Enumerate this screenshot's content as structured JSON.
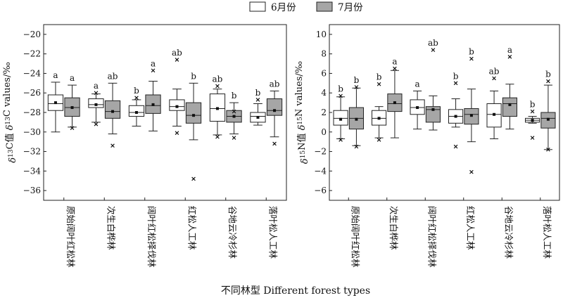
{
  "legend": {
    "entries": [
      {
        "label": "6月份",
        "color": "#ffffff"
      },
      {
        "label": "7月份",
        "color": "#a6a6a6"
      }
    ]
  },
  "x_axis_title": "不同林型 Different forest types",
  "colors": {
    "june": "#ffffff",
    "july": "#a6a6a6",
    "stroke": "#222222"
  },
  "chart_data": [
    {
      "type": "box",
      "panel": "left",
      "ylabel": "δ13C值 δ13C values/‰",
      "ylim": [
        -37,
        -19
      ],
      "yticks": [
        -36,
        -34,
        -32,
        -30,
        -28,
        -26,
        -24,
        -22,
        -20
      ],
      "categories": [
        "原始阔叶红松林",
        "次生白桦林",
        "阔叶红松择伐林",
        "红松人工林",
        "谷地云冷杉林",
        "落叶松人工林"
      ],
      "series": [
        {
          "name": "6月份",
          "boxes": [
            {
              "min": -30.0,
              "q1": -27.8,
              "median": -27.1,
              "q3": -26.2,
              "max": -24.9,
              "mean": -27.0,
              "outliers": [],
              "sig": "a"
            },
            {
              "min": -29.0,
              "q1": -27.5,
              "median": -27.2,
              "q3": -26.6,
              "max": -26.1,
              "mean": -27.2,
              "outliers": [
                -29.2,
                -26.0
              ],
              "sig": "a"
            },
            {
              "min": -29.4,
              "q1": -28.4,
              "median": -28.0,
              "q3": -27.3,
              "max": -26.7,
              "mean": -28.0,
              "outliers": [
                -26.5
              ],
              "sig": "b"
            },
            {
              "min": -29.4,
              "q1": -27.8,
              "median": -27.4,
              "q3": -26.7,
              "max": -25.6,
              "mean": -27.4,
              "outliers": [
                -22.6,
                -30.1
              ],
              "sig": "ab"
            },
            {
              "min": -30.3,
              "q1": -28.9,
              "median": -27.6,
              "q3": -26.1,
              "max": -25.6,
              "mean": -27.6,
              "outliers": [
                -30.5,
                -25.3
              ],
              "sig": "ab"
            },
            {
              "min": -29.3,
              "q1": -29.0,
              "median": -28.4,
              "q3": -28.0,
              "max": -27.1,
              "mean": -28.5,
              "outliers": [
                -26.7
              ],
              "sig": "b"
            }
          ]
        },
        {
          "name": "7月份",
          "boxes": [
            {
              "min": -29.5,
              "q1": -28.4,
              "median": -27.5,
              "q3": -26.5,
              "max": -25.2,
              "mean": -27.5,
              "outliers": [
                -29.6
              ],
              "sig": "a"
            },
            {
              "min": -30.2,
              "q1": -28.6,
              "median": -27.9,
              "q3": -26.8,
              "max": -25.0,
              "mean": -27.9,
              "outliers": [
                -31.4
              ],
              "sig": "ab"
            },
            {
              "min": -29.9,
              "q1": -28.1,
              "median": -27.3,
              "q3": -26.2,
              "max": -24.8,
              "mean": -27.2,
              "outliers": [
                -23.7
              ],
              "sig": "a"
            },
            {
              "min": -30.8,
              "q1": -29.1,
              "median": -28.3,
              "q3": -27.0,
              "max": -25.0,
              "mean": -28.3,
              "outliers": [
                -34.8
              ],
              "sig": "b"
            },
            {
              "min": -30.2,
              "q1": -29.0,
              "median": -28.4,
              "q3": -27.8,
              "max": -27.0,
              "mean": -28.4,
              "outliers": [
                -30.6,
                -27.9
              ],
              "sig": "b"
            },
            {
              "min": -30.5,
              "q1": -28.3,
              "median": -27.8,
              "q3": -26.6,
              "max": -25.8,
              "mean": -27.8,
              "outliers": [
                -31.2
              ],
              "sig": "ab"
            }
          ]
        }
      ]
    },
    {
      "type": "box",
      "panel": "right",
      "ylabel": "δ15N值 δ15N values/‰",
      "ylim": [
        -7,
        11
      ],
      "yticks": [
        -6,
        -4,
        -2,
        0,
        2,
        4,
        6,
        8,
        10
      ],
      "categories": [
        "原始阔叶红松林",
        "次生白桦林",
        "阔叶红松择伐林",
        "红松人工林",
        "谷地云冷杉林",
        "落叶松人工林"
      ],
      "series": [
        {
          "name": "6月份",
          "boxes": [
            {
              "min": -0.7,
              "q1": 0.7,
              "median": 1.4,
              "q3": 2.2,
              "max": 3.6,
              "mean": 1.3,
              "outliers": [
                -0.8,
                3.7
              ],
              "sig": "b"
            },
            {
              "min": -0.6,
              "q1": 0.7,
              "median": 1.4,
              "q3": 2.2,
              "max": 2.6,
              "mean": 1.4,
              "outliers": [
                -0.8,
                4.9
              ],
              "sig": "b"
            },
            {
              "min": 0.3,
              "q1": 1.8,
              "median": 2.5,
              "q3": 3.3,
              "max": 4.2,
              "mean": 2.5,
              "outliers": [],
              "sig": "a"
            },
            {
              "min": 0.5,
              "q1": 0.9,
              "median": 1.6,
              "q3": 2.3,
              "max": 3.4,
              "mean": 1.6,
              "outliers": [
                -1.5,
                5.0
              ],
              "sig": "b"
            },
            {
              "min": -0.7,
              "q1": 0.5,
              "median": 1.8,
              "q3": 2.9,
              "max": 4.2,
              "mean": 1.8,
              "outliers": [
                5.5
              ],
              "sig": "ab"
            },
            {
              "min": 0.9,
              "q1": 1.0,
              "median": 1.2,
              "q3": 1.4,
              "max": 1.6,
              "mean": 1.2,
              "outliers": [
                -0.6,
                2.1
              ],
              "sig": "b"
            }
          ]
        },
        {
          "name": "7月份",
          "boxes": [
            {
              "min": -1.4,
              "q1": 0.3,
              "median": 1.4,
              "q3": 2.5,
              "max": 4.5,
              "mean": 1.3,
              "outliers": [
                -1.5,
                4.6
              ],
              "sig": "b"
            },
            {
              "min": -0.6,
              "q1": 2.1,
              "median": 2.9,
              "q3": 3.9,
              "max": 6.3,
              "mean": 3.0,
              "outliers": [
                6.5
              ],
              "sig": "a"
            },
            {
              "min": 0.2,
              "q1": 1.0,
              "median": 2.3,
              "q3": 2.6,
              "max": 3.7,
              "mean": 2.3,
              "outliers": [
                8.4
              ],
              "sig": "ab"
            },
            {
              "min": -1.0,
              "q1": 0.8,
              "median": 1.8,
              "q3": 2.4,
              "max": 4.4,
              "mean": 1.7,
              "outliers": [
                -4.1,
                7.5
              ],
              "sig": "b"
            },
            {
              "min": 0.3,
              "q1": 1.6,
              "median": 2.9,
              "q3": 3.5,
              "max": 4.9,
              "mean": 2.8,
              "outliers": [
                7.7
              ],
              "sig": "a"
            },
            {
              "min": -1.8,
              "q1": 0.4,
              "median": 1.4,
              "q3": 2.0,
              "max": 4.8,
              "mean": 1.3,
              "outliers": [
                -1.8,
                5.2
              ],
              "sig": "b"
            }
          ]
        }
      ]
    }
  ]
}
